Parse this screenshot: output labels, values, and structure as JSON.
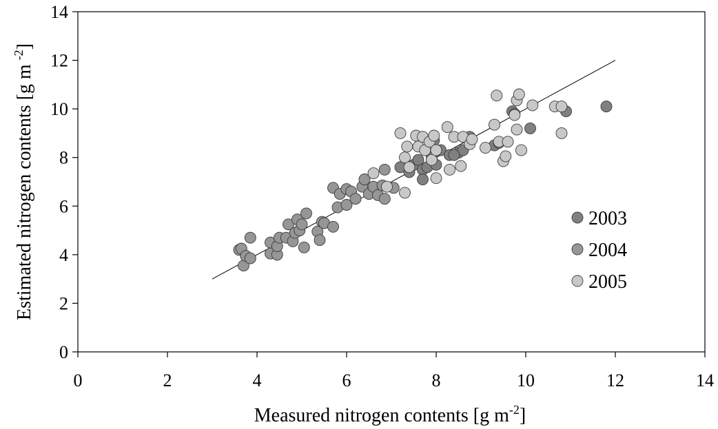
{
  "chart_data": {
    "type": "scatter",
    "xlabel": "Measured nitrogen contents [g m",
    "xlabel_sup": "-2",
    "xlabel_end": "]",
    "ylabel": "Estimated nitrogen contents [g m",
    "ylabel_sup": "-2",
    "ylabel_end": "]",
    "xlim": [
      0,
      14
    ],
    "ylim": [
      0,
      14
    ],
    "xticks": [
      "0",
      "2",
      "4",
      "6",
      "8",
      "10",
      "12",
      "14"
    ],
    "yticks": [
      "0",
      "2",
      "4",
      "6",
      "8",
      "10",
      "12",
      "14"
    ],
    "grid": false,
    "legend_position": "right",
    "fit_line": {
      "x": [
        3,
        12
      ],
      "y": [
        3,
        12
      ]
    },
    "series": [
      {
        "name": "2003",
        "color": "#808080",
        "points": [
          [
            7.2,
            7.6
          ],
          [
            7.4,
            7.4
          ],
          [
            7.5,
            7.7
          ],
          [
            7.6,
            7.9
          ],
          [
            7.7,
            7.5
          ],
          [
            7.8,
            7.6
          ],
          [
            7.9,
            8.0
          ],
          [
            8.0,
            7.7
          ],
          [
            8.1,
            8.3
          ],
          [
            8.3,
            8.1
          ],
          [
            8.5,
            8.2
          ],
          [
            8.6,
            8.3
          ],
          [
            8.75,
            8.85
          ],
          [
            9.3,
            8.5
          ],
          [
            9.7,
            9.9
          ],
          [
            9.75,
            9.8
          ],
          [
            10.1,
            9.2
          ],
          [
            10.9,
            9.9
          ],
          [
            11.8,
            10.1
          ],
          [
            7.7,
            7.1
          ],
          [
            7.95,
            8.7
          ],
          [
            8.4,
            8.1
          ],
          [
            9.4,
            8.6
          ]
        ]
      },
      {
        "name": "2004",
        "color": "#969696",
        "points": [
          [
            3.6,
            4.2
          ],
          [
            3.65,
            4.25
          ],
          [
            3.7,
            3.55
          ],
          [
            3.75,
            3.95
          ],
          [
            3.85,
            3.85
          ],
          [
            3.85,
            4.7
          ],
          [
            4.3,
            4.05
          ],
          [
            4.3,
            4.5
          ],
          [
            4.45,
            4.0
          ],
          [
            4.45,
            4.35
          ],
          [
            4.5,
            4.7
          ],
          [
            4.65,
            4.7
          ],
          [
            4.7,
            5.25
          ],
          [
            4.8,
            4.55
          ],
          [
            4.85,
            4.9
          ],
          [
            4.9,
            5.45
          ],
          [
            4.95,
            5.0
          ],
          [
            5.0,
            5.25
          ],
          [
            5.05,
            4.3
          ],
          [
            5.1,
            5.7
          ],
          [
            5.35,
            4.95
          ],
          [
            5.4,
            4.6
          ],
          [
            5.45,
            5.35
          ],
          [
            5.5,
            5.3
          ],
          [
            5.7,
            5.15
          ],
          [
            5.7,
            6.75
          ],
          [
            5.8,
            5.95
          ],
          [
            5.85,
            6.5
          ],
          [
            6.0,
            6.05
          ],
          [
            6.0,
            6.7
          ],
          [
            6.1,
            6.6
          ],
          [
            6.2,
            6.3
          ],
          [
            6.35,
            6.8
          ],
          [
            6.4,
            7.1
          ],
          [
            6.5,
            6.5
          ],
          [
            6.6,
            6.8
          ],
          [
            6.7,
            6.45
          ],
          [
            6.8,
            6.85
          ],
          [
            6.85,
            7.5
          ],
          [
            6.85,
            6.3
          ],
          [
            7.05,
            6.75
          ]
        ]
      },
      {
        "name": "2005",
        "color": "#c8c8c8",
        "points": [
          [
            6.6,
            7.35
          ],
          [
            6.9,
            6.8
          ],
          [
            7.2,
            9.0
          ],
          [
            7.3,
            6.55
          ],
          [
            7.3,
            8.0
          ],
          [
            7.35,
            8.45
          ],
          [
            7.4,
            7.6
          ],
          [
            7.55,
            8.9
          ],
          [
            7.6,
            8.45
          ],
          [
            7.7,
            8.85
          ],
          [
            7.75,
            8.3
          ],
          [
            7.85,
            8.65
          ],
          [
            7.9,
            7.9
          ],
          [
            7.95,
            8.9
          ],
          [
            8.0,
            8.3
          ],
          [
            8.0,
            7.15
          ],
          [
            8.25,
            9.25
          ],
          [
            8.3,
            7.5
          ],
          [
            8.4,
            8.85
          ],
          [
            8.55,
            7.65
          ],
          [
            8.6,
            8.85
          ],
          [
            8.75,
            8.55
          ],
          [
            8.8,
            8.75
          ],
          [
            9.1,
            8.4
          ],
          [
            9.3,
            9.35
          ],
          [
            9.35,
            10.55
          ],
          [
            9.4,
            8.65
          ],
          [
            9.5,
            7.85
          ],
          [
            9.55,
            8.05
          ],
          [
            9.6,
            8.65
          ],
          [
            9.75,
            9.75
          ],
          [
            9.8,
            10.35
          ],
          [
            9.8,
            9.15
          ],
          [
            9.85,
            10.6
          ],
          [
            9.9,
            8.3
          ],
          [
            10.15,
            10.15
          ],
          [
            10.65,
            10.1
          ],
          [
            10.8,
            9.0
          ],
          [
            10.8,
            10.1
          ]
        ]
      }
    ]
  }
}
